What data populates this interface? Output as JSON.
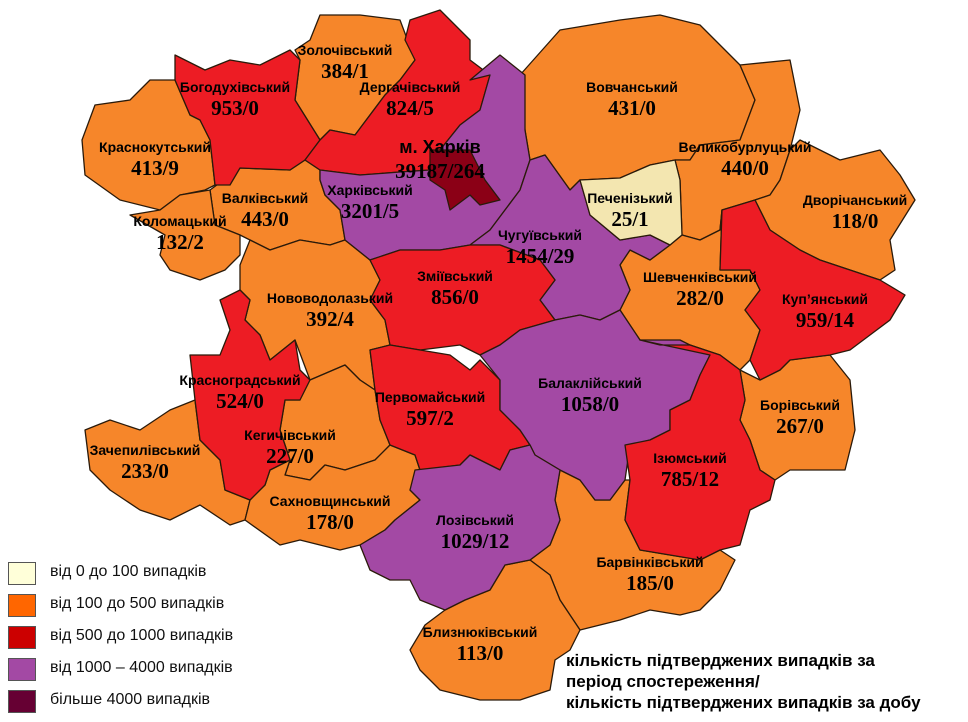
{
  "colors": {
    "range_0_100": "#F3E6B0",
    "range_100_500": "#F6862A",
    "range_500_1000": "#ED1C24",
    "range_1000_4000": "#A349A4",
    "range_over_4000": "#8B0016",
    "legend_0_100": "#FFFFD9",
    "legend_100_500": "#FF6600",
    "legend_500_1000": "#CC0000",
    "legend_1000_4000": "#A349A4",
    "legend_over_4000": "#660033"
  },
  "regions": [
    {
      "id": "zolochiv",
      "name": "Золочівський",
      "value": "384/1",
      "category": "range_100_500"
    },
    {
      "id": "krasnokut",
      "name": "Краснокутський",
      "value": "413/9",
      "category": "range_100_500"
    },
    {
      "id": "vovchansk",
      "name": "Вовчанський",
      "value": "431/0",
      "category": "range_100_500"
    },
    {
      "id": "velykoburluk",
      "name": "Великобурлуцький",
      "value": "440/0",
      "category": "range_100_500"
    },
    {
      "id": "dvorichna",
      "name": "Дворічанський",
      "value": "118/0",
      "category": "range_100_500"
    },
    {
      "id": "shevchenkove",
      "name": "Шевченківський",
      "value": "282/0",
      "category": "range_100_500"
    },
    {
      "id": "borivske",
      "name": "Борівський",
      "value": "267/0",
      "category": "range_100_500"
    },
    {
      "id": "valky",
      "name": "Валківський",
      "value": "443/0",
      "category": "range_100_500"
    },
    {
      "id": "kolomak",
      "name": "Коломацький",
      "value": "132/2",
      "category": "range_100_500"
    },
    {
      "id": "novovodolazk",
      "name": "Нововодолазький",
      "value": "392/4",
      "category": "range_100_500"
    },
    {
      "id": "kehychiv",
      "name": "Кегичівський",
      "value": "227/0",
      "category": "range_100_500"
    },
    {
      "id": "zachepyliv",
      "name": "Зачепилівський",
      "value": "233/0",
      "category": "range_100_500"
    },
    {
      "id": "sakhnovshchyna",
      "name": "Сахновщинський",
      "value": "178/0",
      "category": "range_100_500"
    },
    {
      "id": "barvinkove",
      "name": "Барвінківський",
      "value": "185/0",
      "category": "range_100_500"
    },
    {
      "id": "blyzniuky",
      "name": "Близнюківський",
      "value": "113/0",
      "category": "range_100_500"
    },
    {
      "id": "bohodukhiv",
      "name": "Богодухівський",
      "value": "953/0",
      "category": "range_500_1000"
    },
    {
      "id": "derhachi",
      "name": "Дергачівський",
      "value": "824/5",
      "category": "range_500_1000"
    },
    {
      "id": "kharkivskyi",
      "name": "Харківський",
      "value": "3201/5",
      "category": "range_1000_4000"
    },
    {
      "id": "chuhuiv",
      "name": "Чугуївський",
      "value": "1454/29",
      "category": "range_1000_4000"
    },
    {
      "id": "pechenihy",
      "name": "Печенізький",
      "value": "25/1",
      "category": "range_0_100"
    },
    {
      "id": "zmiiv",
      "name": "Зміївський",
      "value": "856/0",
      "category": "range_500_1000"
    },
    {
      "id": "pervomaisk",
      "name": "Первомайський",
      "value": "597/2",
      "category": "range_500_1000"
    },
    {
      "id": "balakliia",
      "name": "Балаклійський",
      "value": "1058/0",
      "category": "range_1000_4000"
    },
    {
      "id": "lozova",
      "name": "Лозівський",
      "value": "1029/12",
      "category": "range_1000_4000"
    },
    {
      "id": "izium",
      "name": "Ізюмський",
      "value": "785/12",
      "category": "range_500_1000"
    },
    {
      "id": "kupiansk",
      "name": "Куп’янський",
      "value": "959/14",
      "category": "range_500_1000"
    },
    {
      "id": "krasnohrad",
      "name": "Красноградський",
      "value": "524/0",
      "category": "range_500_1000"
    },
    {
      "id": "kharkiv_city",
      "name": "м. Харків",
      "value": "39187/264",
      "category": "range_over_4000"
    }
  ],
  "legend": [
    {
      "label": "від 0 до 100  випадків",
      "color_key": "legend_0_100"
    },
    {
      "label": "від 100 до 500  випадків",
      "color_key": "legend_100_500"
    },
    {
      "label": "від 500 до 1000  випадків",
      "color_key": "legend_500_1000"
    },
    {
      "label": "від 1000 – 4000  випадків",
      "color_key": "legend_1000_4000"
    },
    {
      "label": "більше 4000  випадків",
      "color_key": "legend_over_4000"
    }
  ],
  "caption": {
    "line1": "кількість підтверджених випадків за",
    "line2": "період спостереження/",
    "line3": "кількість підтверджених випадків за добу"
  }
}
